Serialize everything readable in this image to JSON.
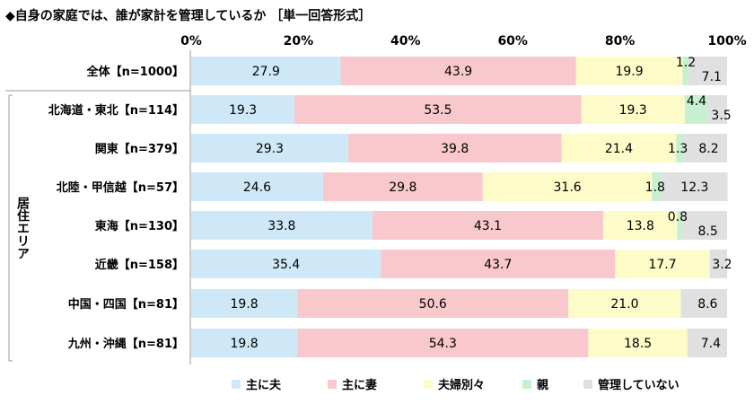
{
  "chart_data": {
    "type": "bar",
    "stacked": true,
    "orientation": "horizontal",
    "title": "◆自身の家庭では、誰が家計を管理しているか ［単一回答形式］",
    "xlim": [
      0,
      100
    ],
    "x_ticks": [
      "0%",
      "20%",
      "40%",
      "60%",
      "80%",
      "100%"
    ],
    "group_label": "居住エリア",
    "categories": [
      "全体【n=1000】",
      "北海道・東北【n=114】",
      "関東【n=379】",
      "北陸・甲信越【n=57】",
      "東海【n=130】",
      "近畿【n=158】",
      "中国・四国【n=81】",
      "九州・沖縄【n=81】"
    ],
    "series": [
      {
        "name": "主に夫",
        "color": "#cfe8f7",
        "values": [
          27.9,
          19.3,
          29.3,
          24.6,
          33.8,
          35.4,
          19.8,
          19.8
        ]
      },
      {
        "name": "主に妻",
        "color": "#f8c8cc",
        "values": [
          43.9,
          53.5,
          39.8,
          29.8,
          43.1,
          43.7,
          50.6,
          54.3
        ]
      },
      {
        "name": "夫婦別々",
        "color": "#fdfbc8",
        "values": [
          19.9,
          19.3,
          21.4,
          31.6,
          13.8,
          17.7,
          21.0,
          18.5
        ]
      },
      {
        "name": "親",
        "color": "#c6f0cf",
        "values": [
          1.2,
          4.4,
          1.3,
          1.8,
          0.8,
          0.0,
          0.0,
          0.0
        ]
      },
      {
        "name": "管理していない",
        "color": "#e0e0e0",
        "values": [
          7.1,
          3.5,
          8.2,
          12.3,
          8.5,
          3.2,
          8.6,
          7.4
        ]
      }
    ],
    "data_labels": [
      [
        "27.9",
        "43.9",
        "19.9",
        "1.2",
        "7.1"
      ],
      [
        "19.3",
        "53.5",
        "19.3",
        "4.4",
        "3.5"
      ],
      [
        "29.3",
        "39.8",
        "21.4",
        "1.3",
        "8.2"
      ],
      [
        "24.6",
        "29.8",
        "31.6",
        "1.8",
        "12.3"
      ],
      [
        "33.8",
        "43.1",
        "13.8",
        "0.8",
        "8.5"
      ],
      [
        "35.4",
        "43.7",
        "17.7",
        "",
        "3.2"
      ],
      [
        "19.8",
        "50.6",
        "21.0",
        "",
        "8.6"
      ],
      [
        "19.8",
        "54.3",
        "18.5",
        "",
        "7.4"
      ]
    ],
    "legend_position": "bottom"
  }
}
